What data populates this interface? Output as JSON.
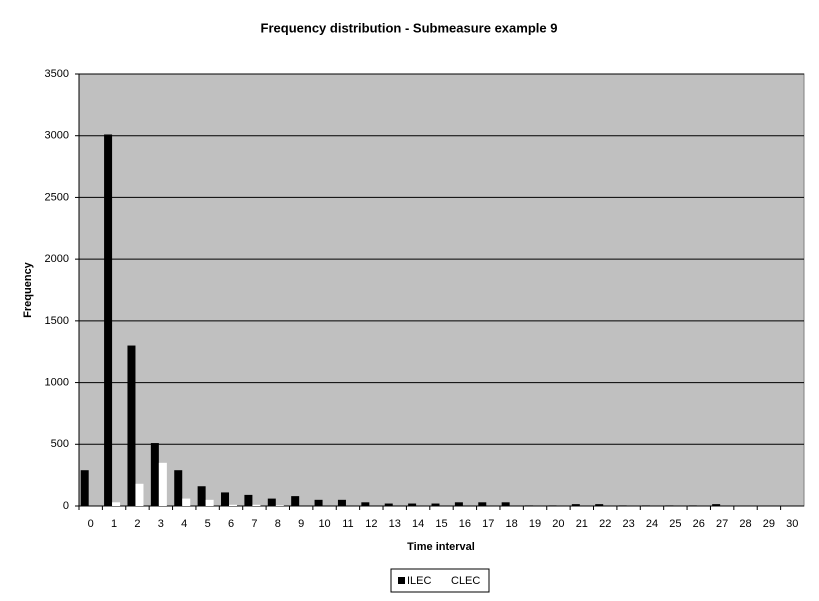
{
  "chart_data": {
    "type": "bar",
    "title": "Frequency distribution - Submeasure example 9",
    "x_label": "Time interval",
    "y_label": "Frequency",
    "categories": [
      "0",
      "1",
      "2",
      "3",
      "4",
      "5",
      "6",
      "7",
      "8",
      "9",
      "10",
      "11",
      "12",
      "13",
      "14",
      "15",
      "16",
      "17",
      "18",
      "19",
      "20",
      "21",
      "22",
      "23",
      "24",
      "25",
      "26",
      "27",
      "28",
      "29",
      "30"
    ],
    "series": [
      {
        "name": "ILEC",
        "color": "#000000",
        "values": [
          290,
          3010,
          1300,
          510,
          290,
          160,
          110,
          90,
          60,
          80,
          50,
          50,
          30,
          20,
          20,
          20,
          30,
          30,
          30,
          5,
          5,
          15,
          15,
          5,
          5,
          5,
          5,
          15,
          0,
          0,
          0
        ]
      },
      {
        "name": "CLEC",
        "color": "#ffffff",
        "values": [
          0,
          30,
          180,
          350,
          60,
          50,
          10,
          10,
          5,
          0,
          0,
          0,
          0,
          0,
          0,
          0,
          0,
          0,
          0,
          0,
          0,
          0,
          0,
          0,
          0,
          0,
          0,
          0,
          0,
          0,
          0
        ]
      }
    ],
    "ylim": [
      0,
      3500
    ],
    "yticks": [
      0,
      500,
      1000,
      1500,
      2000,
      2500,
      3000,
      3500
    ],
    "grid": true,
    "legend": "bottom"
  }
}
